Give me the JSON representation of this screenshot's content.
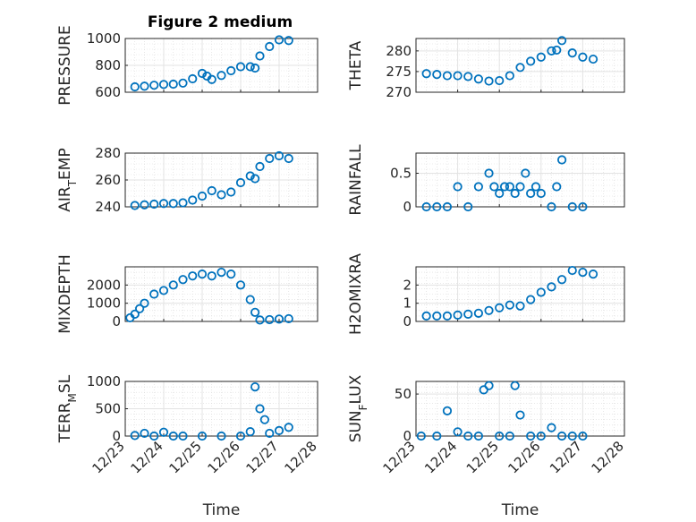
{
  "figure": {
    "title": "Figure 2 medium",
    "marker_color": "#0072BD",
    "x_ticks": [
      "12/23",
      "12/24",
      "12/25",
      "12/26",
      "12/27",
      "12/28"
    ]
  },
  "chart_data": [
    {
      "type": "scatter",
      "title": "Figure 2 medium",
      "xlabel": "",
      "ylabel": "PRESSURE",
      "xlim": [
        "12/23",
        "12/28"
      ],
      "ylim": [
        600,
        1000
      ],
      "yticks": [
        600,
        800,
        1000
      ],
      "grid": "on, with minor grid",
      "x": [
        "12/23 06:00",
        "12/23 12:00",
        "12/23 18:00",
        "12/24 00:00",
        "12/24 06:00",
        "12/24 12:00",
        "12/24 18:00",
        "12/25 00:00",
        "12/25 03:00",
        "12/25 06:00",
        "12/25 12:00",
        "12/25 18:00",
        "12/26 00:00",
        "12/26 06:00",
        "12/26 09:00",
        "12/26 12:00",
        "12/26 18:00",
        "12/27 00:00",
        "12/27 06:00"
      ],
      "y": [
        640,
        645,
        652,
        658,
        660,
        668,
        700,
        740,
        720,
        695,
        725,
        760,
        790,
        790,
        780,
        870,
        940,
        990,
        985
      ]
    },
    {
      "type": "scatter",
      "xlabel": "",
      "ylabel": "THETA",
      "xlim": [
        "12/23",
        "12/28"
      ],
      "ylim": [
        270,
        283
      ],
      "yticks": [
        270,
        275,
        280
      ],
      "grid": "on, with minor grid",
      "x": [
        "12/23 06:00",
        "12/23 12:00",
        "12/23 18:00",
        "12/24 00:00",
        "12/24 06:00",
        "12/24 12:00",
        "12/24 18:00",
        "12/25 00:00",
        "12/25 06:00",
        "12/25 12:00",
        "12/25 18:00",
        "12/26 00:00",
        "12/26 06:00",
        "12/26 09:00",
        "12/26 12:00",
        "12/26 18:00",
        "12/27 00:00",
        "12/27 06:00"
      ],
      "y": [
        274.5,
        274.3,
        274,
        274,
        273.8,
        273.2,
        272.7,
        272.8,
        274,
        276,
        277.5,
        278.5,
        280,
        280.2,
        282.5,
        279.5,
        278.5,
        278
      ]
    },
    {
      "type": "scatter",
      "xlabel": "",
      "ylabel": "AIR_TEMP",
      "xlim": [
        "12/23",
        "12/28"
      ],
      "ylim": [
        240,
        280
      ],
      "yticks": [
        240,
        260,
        280
      ],
      "grid": "on, with minor grid",
      "x": [
        "12/23 06:00",
        "12/23 12:00",
        "12/23 18:00",
        "12/24 00:00",
        "12/24 06:00",
        "12/24 12:00",
        "12/24 18:00",
        "12/25 00:00",
        "12/25 06:00",
        "12/25 12:00",
        "12/25 18:00",
        "12/26 00:00",
        "12/26 06:00",
        "12/26 09:00",
        "12/26 12:00",
        "12/26 18:00",
        "12/27 00:00",
        "12/27 06:00"
      ],
      "y": [
        241,
        241.5,
        242,
        242.5,
        242.5,
        243,
        245,
        248,
        252,
        249,
        251,
        258,
        263,
        261,
        270,
        276,
        278,
        276
      ]
    },
    {
      "type": "scatter",
      "xlabel": "",
      "ylabel": "RAINFALL",
      "xlim": [
        "12/23",
        "12/28"
      ],
      "ylim": [
        0,
        0.8
      ],
      "yticks": [
        0,
        0.5
      ],
      "grid": "on, with minor grid",
      "x": [
        "12/23 06:00",
        "12/23 12:00",
        "12/23 18:00",
        "12/24 00:00",
        "12/24 06:00",
        "12/24 12:00",
        "12/24 18:00",
        "12/24 21:00",
        "12/25 00:00",
        "12/25 03:00",
        "12/25 06:00",
        "12/25 09:00",
        "12/25 12:00",
        "12/25 15:00",
        "12/25 18:00",
        "12/25 21:00",
        "12/26 00:00",
        "12/26 06:00",
        "12/26 09:00",
        "12/26 12:00",
        "12/26 18:00",
        "12/27 00:00"
      ],
      "y": [
        0,
        0,
        0,
        0.3,
        0,
        0.3,
        0.5,
        0.3,
        0.2,
        0.3,
        0.3,
        0.2,
        0.3,
        0.5,
        0.2,
        0.3,
        0.2,
        0,
        0.3,
        0.7,
        0,
        0
      ]
    },
    {
      "type": "scatter",
      "xlabel": "",
      "ylabel": "MIXDEPTH",
      "xlim": [
        "12/23",
        "12/28"
      ],
      "ylim": [
        0,
        3000
      ],
      "yticks": [
        0,
        1000,
        2000
      ],
      "grid": "on, with minor grid",
      "x": [
        "12/23 03:00",
        "12/23 06:00",
        "12/23 09:00",
        "12/23 12:00",
        "12/23 18:00",
        "12/24 00:00",
        "12/24 06:00",
        "12/24 12:00",
        "12/24 18:00",
        "12/25 00:00",
        "12/25 06:00",
        "12/25 12:00",
        "12/25 18:00",
        "12/26 00:00",
        "12/26 06:00",
        "12/26 09:00",
        "12/26 12:00",
        "12/26 18:00",
        "12/27 00:00",
        "12/27 06:00"
      ],
      "y": [
        200,
        400,
        700,
        1000,
        1500,
        1700,
        2000,
        2300,
        2500,
        2600,
        2500,
        2700,
        2600,
        2000,
        1200,
        500,
        80,
        100,
        130,
        150
      ]
    },
    {
      "type": "scatter",
      "xlabel": "",
      "ylabel": "H2OMIXRA",
      "xlim": [
        "12/23",
        "12/28"
      ],
      "ylim": [
        0,
        3
      ],
      "yticks": [
        0,
        1,
        2
      ],
      "grid": "on, with minor grid",
      "x": [
        "12/23 06:00",
        "12/23 12:00",
        "12/23 18:00",
        "12/24 00:00",
        "12/24 06:00",
        "12/24 12:00",
        "12/24 18:00",
        "12/25 00:00",
        "12/25 06:00",
        "12/25 12:00",
        "12/25 18:00",
        "12/26 00:00",
        "12/26 06:00",
        "12/26 12:00",
        "12/26 18:00",
        "12/27 00:00",
        "12/27 06:00"
      ],
      "y": [
        0.3,
        0.3,
        0.3,
        0.35,
        0.4,
        0.45,
        0.6,
        0.75,
        0.9,
        0.85,
        1.2,
        1.6,
        1.9,
        2.3,
        2.8,
        2.7,
        2.6
      ]
    },
    {
      "type": "scatter",
      "xlabel": "Time",
      "ylabel": "TERR_MSL",
      "xlim": [
        "12/23",
        "12/28"
      ],
      "ylim": [
        0,
        1000
      ],
      "yticks": [
        0,
        500,
        1000
      ],
      "grid": "on, with minor grid",
      "x": [
        "12/23 06:00",
        "12/23 12:00",
        "12/23 18:00",
        "12/24 00:00",
        "12/24 06:00",
        "12/24 12:00",
        "12/25 00:00",
        "12/25 12:00",
        "12/26 00:00",
        "12/26 06:00",
        "12/26 09:00",
        "12/26 12:00",
        "12/26 15:00",
        "12/26 18:00",
        "12/27 00:00",
        "12/27 06:00"
      ],
      "y": [
        10,
        50,
        0,
        70,
        0,
        0,
        0,
        0,
        0,
        80,
        900,
        500,
        300,
        50,
        100,
        160
      ]
    },
    {
      "type": "scatter",
      "xlabel": "Time",
      "ylabel": "SUN_FLUX",
      "xlim": [
        "12/23",
        "12/28"
      ],
      "ylim": [
        0,
        65
      ],
      "yticks": [
        0,
        50
      ],
      "grid": "on, with minor grid",
      "x": [
        "12/23 03:00",
        "12/23 12:00",
        "12/23 18:00",
        "12/24 00:00",
        "12/24 06:00",
        "12/24 12:00",
        "12/24 15:00",
        "12/24 18:00",
        "12/25 00:00",
        "12/25 06:00",
        "12/25 09:00",
        "12/25 12:00",
        "12/25 18:00",
        "12/26 00:00",
        "12/26 06:00",
        "12/26 12:00",
        "12/26 18:00",
        "12/27 00:00"
      ],
      "y": [
        0,
        0,
        30,
        5,
        0,
        0,
        55,
        60,
        0,
        0,
        60,
        25,
        0,
        0,
        10,
        0,
        0,
        0
      ]
    }
  ]
}
